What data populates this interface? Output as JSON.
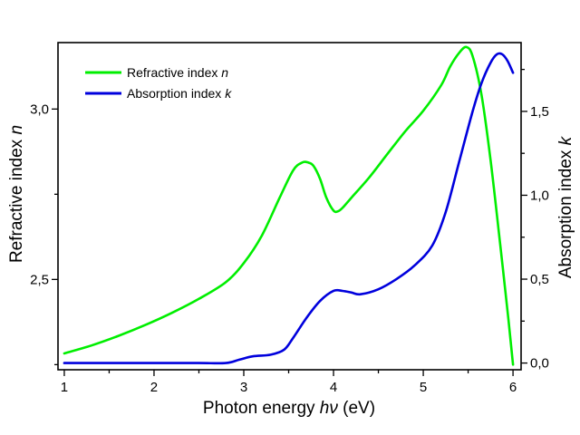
{
  "chart_data": {
    "type": "line",
    "xlabel": "Photon energy",
    "xlabel_symbol": "hν",
    "xlabel_unit": "(eV)",
    "ylabel_left": "Refractive index",
    "ylabel_left_symbol": "n",
    "ylabel_right": "Absorption index",
    "ylabel_right_symbol": "k",
    "xlim": [
      0.93,
      6.09
    ],
    "ylim_left": [
      2.235,
      3.195
    ],
    "ylim_right": [
      -0.04,
      1.91
    ],
    "x_ticks": [
      1,
      2,
      3,
      4,
      5,
      6
    ],
    "x_tick_labels": [
      "1",
      "2",
      "3",
      "4",
      "5",
      "6"
    ],
    "y_left_ticks": [
      2.5,
      3.0
    ],
    "y_left_tick_labels": [
      "2,5",
      "3,0"
    ],
    "y_right_ticks": [
      0.0,
      0.5,
      1.0,
      1.5
    ],
    "y_right_tick_labels": [
      "0,0",
      "0,5",
      "1,0",
      "1,5"
    ],
    "grid": false,
    "legend_position": "top-left",
    "series": [
      {
        "name": "Refractive index",
        "name_symbol": "n",
        "color": "#00ee00",
        "axis": "left",
        "x": [
          1.0,
          1.3,
          1.6,
          1.9,
          2.2,
          2.5,
          2.8,
          3.0,
          3.2,
          3.4,
          3.55,
          3.65,
          3.72,
          3.78,
          3.85,
          3.92,
          4.0,
          4.05,
          4.1,
          4.2,
          4.4,
          4.6,
          4.8,
          5.0,
          5.2,
          5.3,
          5.4,
          5.48,
          5.55,
          5.65,
          5.75,
          5.85,
          5.95,
          6.0
        ],
        "y": [
          2.283,
          2.306,
          2.334,
          2.366,
          2.402,
          2.443,
          2.492,
          2.548,
          2.628,
          2.74,
          2.82,
          2.843,
          2.843,
          2.832,
          2.795,
          2.74,
          2.702,
          2.7,
          2.71,
          2.74,
          2.8,
          2.868,
          2.935,
          2.995,
          3.07,
          3.125,
          3.165,
          3.182,
          3.155,
          3.04,
          2.85,
          2.62,
          2.38,
          2.25
        ]
      },
      {
        "name": "Absorption index",
        "name_symbol": "k",
        "color": "#0000dd",
        "axis": "right",
        "x": [
          1.0,
          1.5,
          2.0,
          2.5,
          2.8,
          2.95,
          3.1,
          3.3,
          3.45,
          3.55,
          3.7,
          3.85,
          4.0,
          4.1,
          4.2,
          4.3,
          4.5,
          4.7,
          4.9,
          5.1,
          5.25,
          5.4,
          5.55,
          5.65,
          5.75,
          5.82,
          5.88,
          5.94,
          6.0
        ],
        "y": [
          0.0,
          0.0,
          0.0,
          0.0,
          0.0,
          0.02,
          0.04,
          0.05,
          0.08,
          0.15,
          0.27,
          0.37,
          0.43,
          0.43,
          0.42,
          0.41,
          0.44,
          0.5,
          0.58,
          0.7,
          0.9,
          1.2,
          1.5,
          1.67,
          1.79,
          1.84,
          1.84,
          1.8,
          1.73
        ]
      }
    ]
  }
}
